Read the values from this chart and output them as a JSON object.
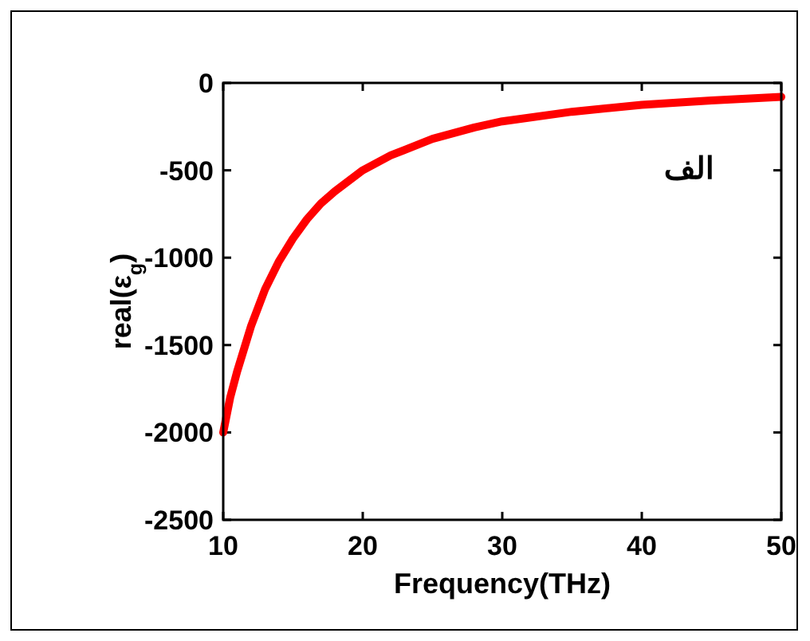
{
  "chart_data": {
    "type": "line",
    "xlabel": "Frequency(THz)",
    "ylabel": "real(ε$_{g}$)",
    "xlim": [
      10,
      50
    ],
    "xticks": [
      10,
      20,
      30,
      40,
      50
    ],
    "ylim": [
      -2500,
      0
    ],
    "yticks": [
      -2500,
      -2000,
      -1500,
      -1000,
      -500,
      0
    ],
    "grid": false,
    "marker": "none",
    "line_style": "solid",
    "annotations": [
      "الف"
    ],
    "series": [
      {
        "color": "#ff0000",
        "x": [
          10,
          10.5,
          11,
          12,
          13,
          14,
          15,
          16,
          17,
          18,
          20,
          22,
          25,
          28,
          30,
          35,
          40,
          45,
          50
        ],
        "values": [
          -2000,
          -1800,
          -1650,
          -1390,
          -1180,
          -1020,
          -890,
          -780,
          -690,
          -620,
          -500,
          -415,
          -320,
          -255,
          -220,
          -165,
          -125,
          -100,
          -80
        ]
      }
    ]
  }
}
